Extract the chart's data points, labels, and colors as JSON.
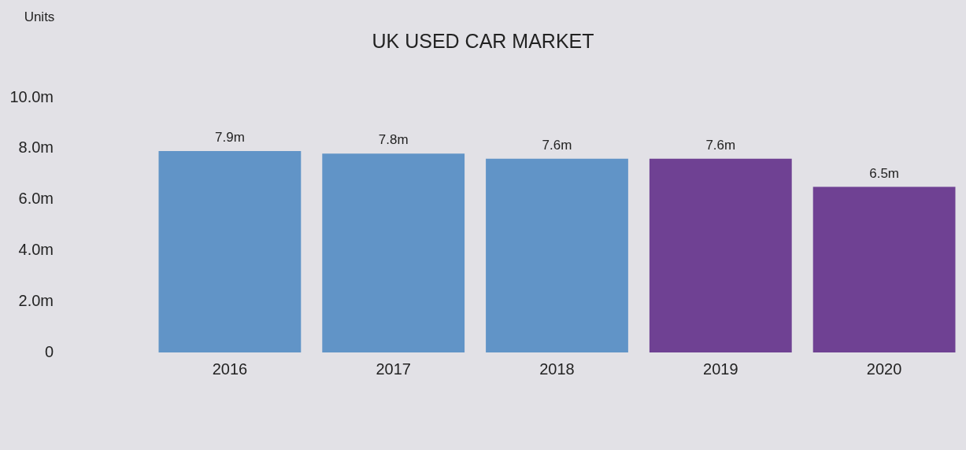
{
  "chart_data": {
    "type": "bar",
    "title": "UK USED CAR MARKET",
    "ylabel": "Units",
    "categories": [
      "2016",
      "2017",
      "2018",
      "2019",
      "2020"
    ],
    "values": [
      7.9,
      7.8,
      7.6,
      7.6,
      6.5
    ],
    "colors": [
      "#6194c7",
      "#6194c7",
      "#6194c7",
      "#6f4193",
      "#6f4193"
    ],
    "value_labels": [
      "7.9m",
      "7.8m",
      "7.6m",
      "7.6m",
      "6.5m"
    ],
    "ylim": [
      0,
      10
    ],
    "yticks": [
      {
        "value": 0,
        "label": "0"
      },
      {
        "value": 2,
        "label": "2.0m"
      },
      {
        "value": 4,
        "label": "4.0m"
      },
      {
        "value": 6,
        "label": "6.0m"
      },
      {
        "value": 8,
        "label": "8.0m"
      },
      {
        "value": 10,
        "label": "10.0m"
      }
    ],
    "grid": false,
    "legend": false
  }
}
